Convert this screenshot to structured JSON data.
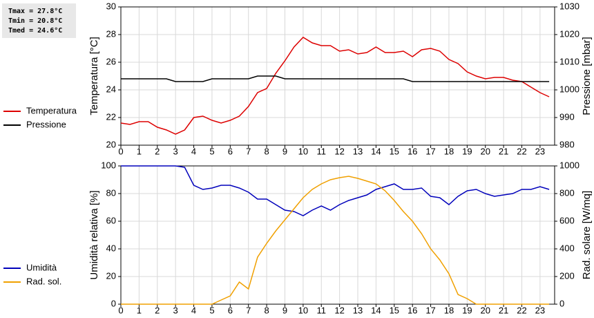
{
  "chart_data": [
    {
      "type": "line",
      "y_label": "Temperatura [°C]",
      "y2_label": "Pressione [mbar]",
      "annotations": [
        "Tmax = 27.8°C",
        "Tmin = 20.8°C",
        "Tmed = 24.6°C"
      ],
      "x": [
        0,
        0.5,
        1,
        1.5,
        2,
        2.5,
        3,
        3.5,
        4,
        4.5,
        5,
        5.5,
        6,
        6.5,
        7,
        7.5,
        8,
        8.5,
        9,
        9.5,
        10,
        10.5,
        11,
        11.5,
        12,
        12.5,
        13,
        13.5,
        14,
        14.5,
        15,
        15.5,
        16,
        16.5,
        17,
        17.5,
        18,
        18.5,
        19,
        19.5,
        20,
        20.5,
        21,
        21.5,
        22,
        22.5,
        23,
        23.5
      ],
      "xlim": [
        0,
        23.8
      ],
      "xticks": [
        0,
        1,
        2,
        3,
        4,
        5,
        6,
        7,
        8,
        9,
        10,
        11,
        12,
        13,
        14,
        15,
        16,
        17,
        18,
        19,
        20,
        21,
        22,
        23
      ],
      "ylim": [
        20,
        30
      ],
      "yticks": [
        20,
        22,
        24,
        26,
        28,
        30
      ],
      "y2lim": [
        980,
        1030
      ],
      "y2ticks": [
        980,
        990,
        1000,
        1010,
        1020,
        1030
      ],
      "grid": true,
      "legend": "left",
      "series": [
        {
          "name": "Temperatura",
          "color": "#dd0000",
          "values": [
            21.6,
            21.5,
            21.7,
            21.7,
            21.3,
            21.1,
            20.8,
            21.1,
            22.0,
            22.1,
            21.8,
            21.6,
            21.8,
            22.1,
            22.8,
            23.8,
            24.1,
            25.2,
            26.1,
            27.1,
            27.8,
            27.4,
            27.2,
            27.2,
            26.8,
            26.9,
            26.6,
            26.7,
            27.1,
            26.7,
            26.7,
            26.8,
            26.4,
            26.9,
            27.0,
            26.8,
            26.2,
            25.9,
            25.3,
            25.0,
            24.8,
            24.9,
            24.9,
            24.7,
            24.6,
            24.2,
            23.8,
            23.5
          ]
        },
        {
          "name": "Pressione",
          "color": "#000000",
          "axis": "y2",
          "values": [
            1004,
            1004,
            1004,
            1004,
            1004,
            1004,
            1003,
            1003,
            1003,
            1003,
            1004,
            1004,
            1004,
            1004,
            1004,
            1005,
            1005,
            1005,
            1004,
            1004,
            1004,
            1004,
            1004,
            1004,
            1004,
            1004,
            1004,
            1004,
            1004,
            1004,
            1004,
            1004,
            1003,
            1003,
            1003,
            1003,
            1003,
            1003,
            1003,
            1003,
            1003,
            1003,
            1003,
            1003,
            1003,
            1003,
            1003,
            1003
          ]
        }
      ]
    },
    {
      "type": "line",
      "y_label": "Umidità relativa [%]",
      "y2_label": "Rad. solare [W/mq]",
      "x": [
        0,
        0.5,
        1,
        1.5,
        2,
        2.5,
        3,
        3.5,
        4,
        4.5,
        5,
        5.5,
        6,
        6.5,
        7,
        7.5,
        8,
        8.5,
        9,
        9.5,
        10,
        10.5,
        11,
        11.5,
        12,
        12.5,
        13,
        13.5,
        14,
        14.5,
        15,
        15.5,
        16,
        16.5,
        17,
        17.5,
        18,
        18.5,
        19,
        19.5,
        20,
        20.5,
        21,
        21.5,
        22,
        22.5,
        23,
        23.5
      ],
      "xlim": [
        0,
        23.8
      ],
      "xticks": [
        0,
        1,
        2,
        3,
        4,
        5,
        6,
        7,
        8,
        9,
        10,
        11,
        12,
        13,
        14,
        15,
        16,
        17,
        18,
        19,
        20,
        21,
        22,
        23
      ],
      "ylim": [
        0,
        100
      ],
      "yticks": [
        0,
        20,
        40,
        60,
        80,
        100
      ],
      "y2lim": [
        0,
        1000
      ],
      "y2ticks": [
        0,
        200,
        400,
        600,
        800,
        1000
      ],
      "grid": true,
      "legend": "left",
      "series": [
        {
          "name": "Umidità",
          "color": "#0000bb",
          "values": [
            100,
            100,
            100,
            100,
            100,
            100,
            100,
            99,
            86,
            83,
            84,
            86,
            86,
            84,
            81,
            76,
            76,
            72,
            68,
            67,
            64,
            68,
            71,
            68,
            72,
            75,
            77,
            79,
            83,
            85,
            87,
            83,
            83,
            84,
            78,
            77,
            72,
            78,
            82,
            83,
            80,
            78,
            79,
            80,
            83,
            83,
            85,
            83
          ]
        },
        {
          "name": "Rad. sol.",
          "color": "#f0a000",
          "axis": "y2",
          "values": [
            0,
            0,
            0,
            0,
            0,
            0,
            0,
            0,
            0,
            0,
            0,
            30,
            60,
            160,
            110,
            340,
            440,
            530,
            610,
            690,
            770,
            830,
            870,
            900,
            915,
            925,
            910,
            890,
            870,
            820,
            750,
            670,
            600,
            510,
            400,
            320,
            220,
            70,
            40,
            0,
            0,
            0,
            0,
            0,
            0,
            0,
            0,
            0
          ]
        }
      ]
    }
  ]
}
